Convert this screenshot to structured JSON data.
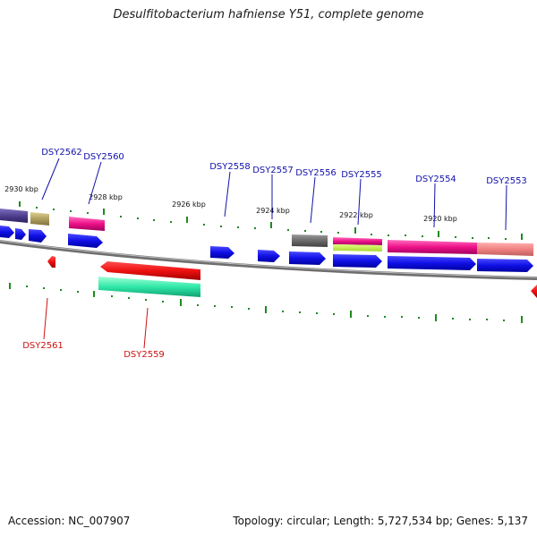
{
  "header": {
    "title": "Desulfitobacterium hafniense Y51, complete genome"
  },
  "footer": {
    "accession": "Accession: NC_007907",
    "summary": "Topology: circular; Length: 5,727,534 bp; Genes: 5,137"
  },
  "colors": {
    "forward_gene": "#1010e6",
    "reverse_gene": "#ee1111",
    "tick": "#1f8a1f",
    "backbone": "#7a7a7a",
    "label_forward": "#1010aa",
    "label_reverse": "#cc1111"
  },
  "scale": {
    "ticks": [
      {
        "label": "2930 kbp"
      },
      {
        "label": "2928 kbp"
      },
      {
        "label": "2926 kbp"
      },
      {
        "label": "2924 kbp"
      },
      {
        "label": "2922 kbp"
      },
      {
        "label": "2920 kbp"
      }
    ]
  },
  "genes": [
    {
      "id": "DSY2562",
      "strand": "forward"
    },
    {
      "id": "DSY2561",
      "strand": "reverse"
    },
    {
      "id": "DSY2560",
      "strand": "forward"
    },
    {
      "id": "DSY2559",
      "strand": "reverse"
    },
    {
      "id": "DSY2558",
      "strand": "forward"
    },
    {
      "id": "DSY2557",
      "strand": "forward"
    },
    {
      "id": "DSY2556",
      "strand": "forward"
    },
    {
      "id": "DSY2555",
      "strand": "forward"
    },
    {
      "id": "DSY2554",
      "strand": "forward"
    },
    {
      "id": "DSY2553",
      "strand": "forward"
    }
  ]
}
